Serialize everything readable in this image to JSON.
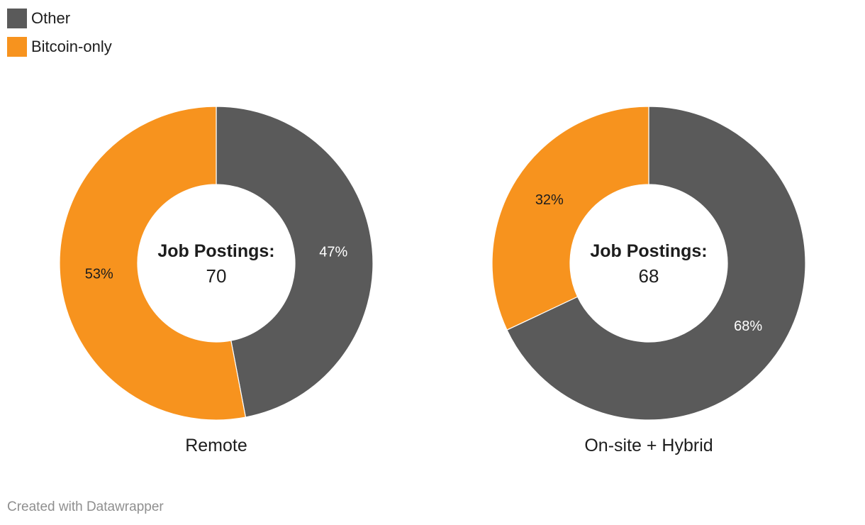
{
  "legend": [
    {
      "label": "Other",
      "color": "#5a5a5a"
    },
    {
      "label": "Bitcoin-only",
      "color": "#f7931e"
    }
  ],
  "chart_data": [
    {
      "type": "pie",
      "title": "Remote",
      "center_label": "Job Postings:",
      "center_value": "70",
      "slices": [
        {
          "name": "Other",
          "value": 47,
          "label": "47%",
          "color": "#5a5a5a"
        },
        {
          "name": "Bitcoin-only",
          "value": 53,
          "label": "53%",
          "color": "#f7931e"
        }
      ]
    },
    {
      "type": "pie",
      "title": "On-site + Hybrid",
      "center_label": "Job Postings:",
      "center_value": "68",
      "slices": [
        {
          "name": "Other",
          "value": 68,
          "label": "68%",
          "color": "#5a5a5a"
        },
        {
          "name": "Bitcoin-only",
          "value": 32,
          "label": "32%",
          "color": "#f7931e"
        }
      ]
    }
  ],
  "footer": {
    "credit": "Created with Datawrapper"
  }
}
